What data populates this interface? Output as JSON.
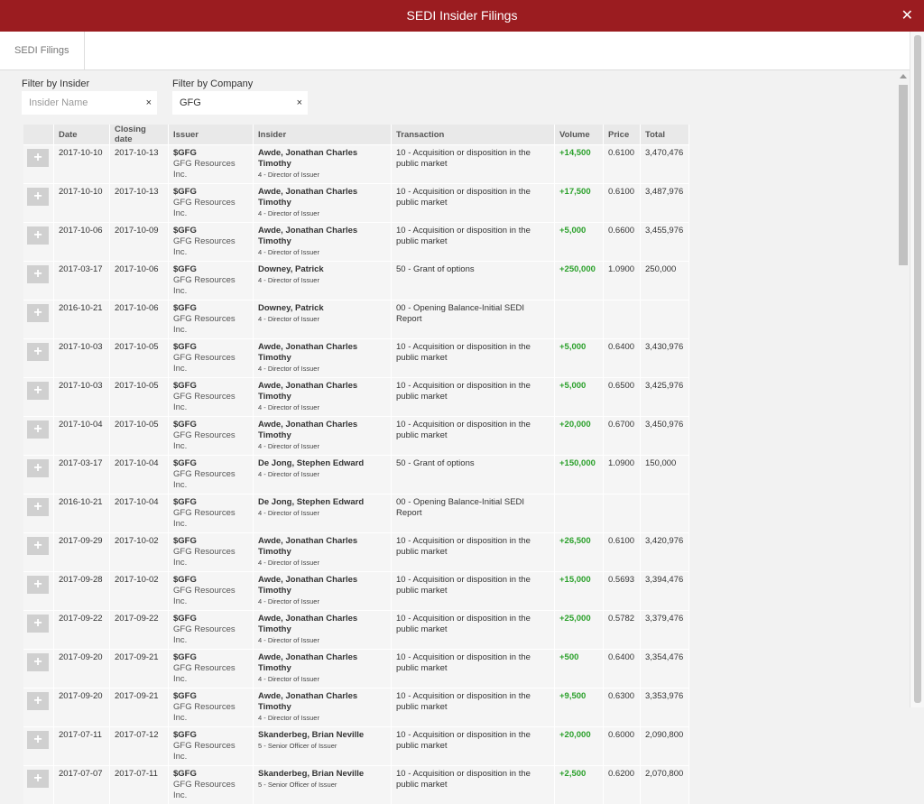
{
  "window": {
    "title": "SEDI Insider Filings",
    "close_label": "✕"
  },
  "tabs": [
    {
      "label": "SEDI Filings"
    }
  ],
  "filters": {
    "insider": {
      "label": "Filter by Insider",
      "placeholder": "Insider Name",
      "value": "",
      "clear": "×"
    },
    "company": {
      "label": "Filter by Company",
      "placeholder": "",
      "value": "GFG",
      "clear": "×"
    }
  },
  "table": {
    "headers": [
      "",
      "Date",
      "Closing date",
      "Issuer",
      "Insider",
      "Transaction",
      "Volume",
      "Price",
      "Total"
    ],
    "add_label": "+",
    "rows": [
      {
        "date": "2017-10-10",
        "closing": "2017-10-13",
        "symbol": "$GFG",
        "company": "GFG Resources Inc.",
        "insider": "Awde, Jonathan Charles Timothy",
        "role": "4 - Director of Issuer",
        "transaction": "10 - Acquisition or disposition in the public market",
        "volume": "+14,500",
        "price": "0.6100",
        "total": "3,470,476"
      },
      {
        "date": "2017-10-10",
        "closing": "2017-10-13",
        "symbol": "$GFG",
        "company": "GFG Resources Inc.",
        "insider": "Awde, Jonathan Charles Timothy",
        "role": "4 - Director of Issuer",
        "transaction": "10 - Acquisition or disposition in the public market",
        "volume": "+17,500",
        "price": "0.6100",
        "total": "3,487,976"
      },
      {
        "date": "2017-10-06",
        "closing": "2017-10-09",
        "symbol": "$GFG",
        "company": "GFG Resources Inc.",
        "insider": "Awde, Jonathan Charles Timothy",
        "role": "4 - Director of Issuer",
        "transaction": "10 - Acquisition or disposition in the public market",
        "volume": "+5,000",
        "price": "0.6600",
        "total": "3,455,976"
      },
      {
        "date": "2017-03-17",
        "closing": "2017-10-06",
        "symbol": "$GFG",
        "company": "GFG Resources Inc.",
        "insider": "Downey, Patrick",
        "role": "4 - Director of Issuer",
        "transaction": "50 - Grant of options",
        "volume": "+250,000",
        "price": "1.0900",
        "total": "250,000"
      },
      {
        "date": "2016-10-21",
        "closing": "2017-10-06",
        "symbol": "$GFG",
        "company": "GFG Resources Inc.",
        "insider": "Downey, Patrick",
        "role": "4 - Director of Issuer",
        "transaction": "00 - Opening Balance-Initial SEDI Report",
        "volume": "",
        "price": "",
        "total": ""
      },
      {
        "date": "2017-10-03",
        "closing": "2017-10-05",
        "symbol": "$GFG",
        "company": "GFG Resources Inc.",
        "insider": "Awde, Jonathan Charles Timothy",
        "role": "4 - Director of Issuer",
        "transaction": "10 - Acquisition or disposition in the public market",
        "volume": "+5,000",
        "price": "0.6400",
        "total": "3,430,976"
      },
      {
        "date": "2017-10-03",
        "closing": "2017-10-05",
        "symbol": "$GFG",
        "company": "GFG Resources Inc.",
        "insider": "Awde, Jonathan Charles Timothy",
        "role": "4 - Director of Issuer",
        "transaction": "10 - Acquisition or disposition in the public market",
        "volume": "+5,000",
        "price": "0.6500",
        "total": "3,425,976"
      },
      {
        "date": "2017-10-04",
        "closing": "2017-10-05",
        "symbol": "$GFG",
        "company": "GFG Resources Inc.",
        "insider": "Awde, Jonathan Charles Timothy",
        "role": "4 - Director of Issuer",
        "transaction": "10 - Acquisition or disposition in the public market",
        "volume": "+20,000",
        "price": "0.6700",
        "total": "3,450,976"
      },
      {
        "date": "2017-03-17",
        "closing": "2017-10-04",
        "symbol": "$GFG",
        "company": "GFG Resources Inc.",
        "insider": "De Jong, Stephen Edward",
        "role": "4 - Director of Issuer",
        "transaction": "50 - Grant of options",
        "volume": "+150,000",
        "price": "1.0900",
        "total": "150,000"
      },
      {
        "date": "2016-10-21",
        "closing": "2017-10-04",
        "symbol": "$GFG",
        "company": "GFG Resources Inc.",
        "insider": "De Jong, Stephen Edward",
        "role": "4 - Director of Issuer",
        "transaction": "00 - Opening Balance-Initial SEDI Report",
        "volume": "",
        "price": "",
        "total": ""
      },
      {
        "date": "2017-09-29",
        "closing": "2017-10-02",
        "symbol": "$GFG",
        "company": "GFG Resources Inc.",
        "insider": "Awde, Jonathan Charles Timothy",
        "role": "4 - Director of Issuer",
        "transaction": "10 - Acquisition or disposition in the public market",
        "volume": "+26,500",
        "price": "0.6100",
        "total": "3,420,976"
      },
      {
        "date": "2017-09-28",
        "closing": "2017-10-02",
        "symbol": "$GFG",
        "company": "GFG Resources Inc.",
        "insider": "Awde, Jonathan Charles Timothy",
        "role": "4 - Director of Issuer",
        "transaction": "10 - Acquisition or disposition in the public market",
        "volume": "+15,000",
        "price": "0.5693",
        "total": "3,394,476"
      },
      {
        "date": "2017-09-22",
        "closing": "2017-09-22",
        "symbol": "$GFG",
        "company": "GFG Resources Inc.",
        "insider": "Awde, Jonathan Charles Timothy",
        "role": "4 - Director of Issuer",
        "transaction": "10 - Acquisition or disposition in the public market",
        "volume": "+25,000",
        "price": "0.5782",
        "total": "3,379,476"
      },
      {
        "date": "2017-09-20",
        "closing": "2017-09-21",
        "symbol": "$GFG",
        "company": "GFG Resources Inc.",
        "insider": "Awde, Jonathan Charles Timothy",
        "role": "4 - Director of Issuer",
        "transaction": "10 - Acquisition or disposition in the public market",
        "volume": "+500",
        "price": "0.6400",
        "total": "3,354,476"
      },
      {
        "date": "2017-09-20",
        "closing": "2017-09-21",
        "symbol": "$GFG",
        "company": "GFG Resources Inc.",
        "insider": "Awde, Jonathan Charles Timothy",
        "role": "4 - Director of Issuer",
        "transaction": "10 - Acquisition or disposition in the public market",
        "volume": "+9,500",
        "price": "0.6300",
        "total": "3,353,976"
      },
      {
        "date": "2017-07-11",
        "closing": "2017-07-12",
        "symbol": "$GFG",
        "company": "GFG Resources Inc.",
        "insider": "Skanderbeg, Brian Neville",
        "role": "5 - Senior Officer of Issuer",
        "transaction": "10 - Acquisition or disposition in the public market",
        "volume": "+20,000",
        "price": "0.6000",
        "total": "2,090,800"
      },
      {
        "date": "2017-07-07",
        "closing": "2017-07-11",
        "symbol": "$GFG",
        "company": "GFG Resources Inc.",
        "insider": "Skanderbeg, Brian Neville",
        "role": "5 - Senior Officer of Issuer",
        "transaction": "10 - Acquisition or disposition in the public market",
        "volume": "+2,500",
        "price": "0.6200",
        "total": "2,070,800"
      }
    ]
  }
}
